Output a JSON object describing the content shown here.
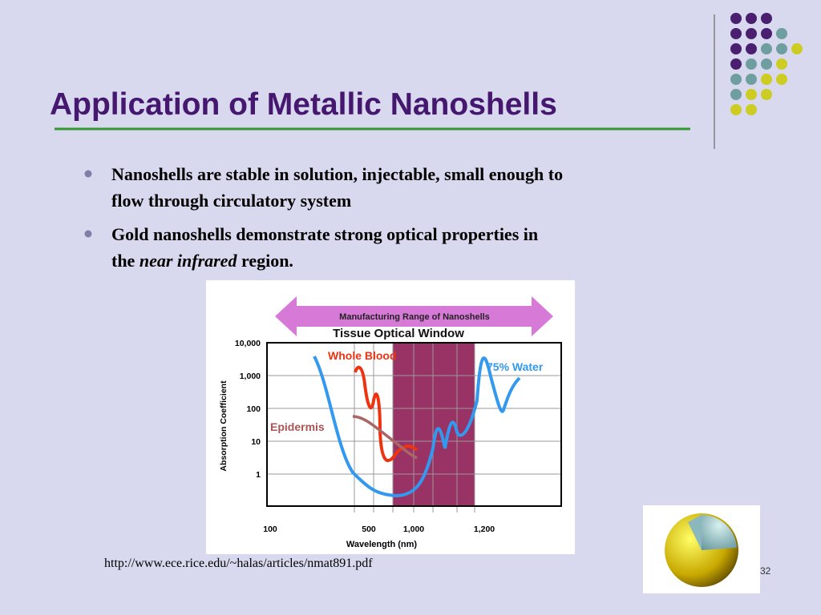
{
  "slide": {
    "title": "Application of Metallic Nanoshells",
    "bullets": [
      {
        "parts": [
          "Nanoshells are stable in solution, injectable, small enough to",
          "flow through circulatory system"
        ]
      },
      {
        "parts": [
          "Gold nanoshells demonstrate strong optical properties in",
          "the ",
          "near infrared",
          " region."
        ]
      }
    ],
    "figure": {
      "arrow_label": "Manufacturing Range of Nanoshells",
      "window_label": "Tissue Optical Window",
      "y_axis_label": "Absorption Coefficient",
      "x_axis_label": "Wavelength (nm)",
      "yticks": [
        "10,000",
        "1,000",
        "100",
        "10",
        "1"
      ],
      "xticks": [
        "100",
        "500",
        "1,000",
        "1,200"
      ],
      "curve_labels": [
        "Whole Blood",
        "75% Water",
        "Epidermis"
      ]
    },
    "source": "http://www.ece.rice.edu/~halas/articles/nmat891.pdf",
    "page_number": "32"
  }
}
